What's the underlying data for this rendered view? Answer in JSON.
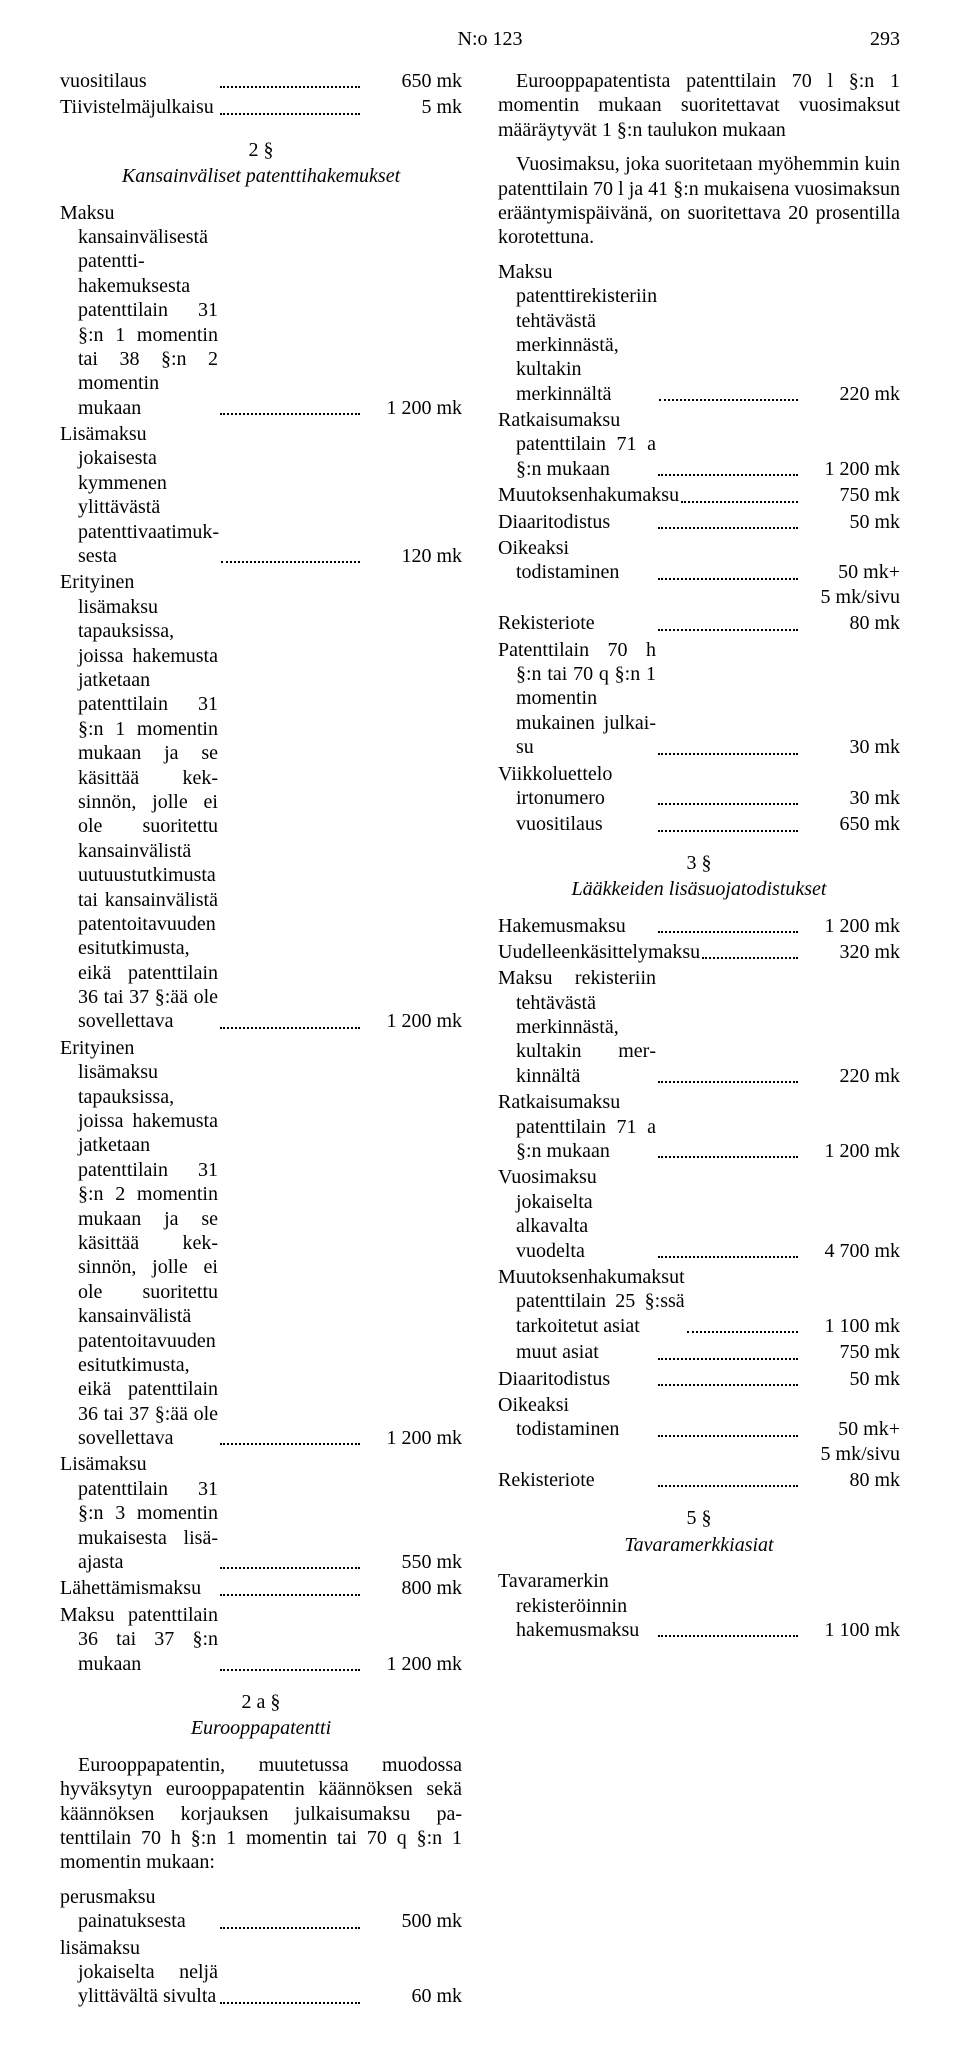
{
  "header": {
    "docref": "N:o 123",
    "pagenum": "293"
  },
  "left": {
    "topFees": [
      {
        "label": "vuositilaus",
        "value": "650 mk"
      },
      {
        "label": "Tiivistelmäjulkaisu",
        "value": "5 mk"
      }
    ],
    "sec2": {
      "num": "2 §",
      "title": "Kansainväliset patenttihakemukset"
    },
    "sec2Fees": [
      {
        "label": "Maksu kansainvälisestä patentti­hakemuksesta patenttilain 31 §:n 1 momentin tai 38 §:n 2 momentin mukaan",
        "value": "1 200 mk"
      },
      {
        "label": "Lisämaksu jokaisesta kymmenen ylittävästä patenttivaatimuk­sesta",
        "value": "120 mk"
      },
      {
        "label": "Erityinen lisämaksu tapauksissa, joissa hakemusta jatketaan patenttilain 31 §:n 1 momen­tin mukaan ja se käsittää kek­sinnön, jolle ei ole suoritettu kansainvälistä uutuustutki­musta tai kansainvälistä pa­tentoitavuuden esitutkimusta, eikä patenttilain 36 tai 37 §:ää ole sovellettava",
        "value": "1 200 mk"
      },
      {
        "label": "Erityinen lisämaksu tapauksissa, joissa hakemusta jatketaan patenttilain 31 §:n 2 momen­tin mukaan ja se käsittää kek­sinnön, jolle ei ole suoritettu kansainvälistä patentoitavuu­den esitutkimusta, eikä pa­tenttilain 36 tai 37 §:ää ole sovellettava",
        "value": "1 200 mk"
      },
      {
        "label": "Lisämaksu patenttilain 31 §:n 3 momentin mukaisesta lisä­ajasta",
        "value": "550 mk"
      },
      {
        "label": "Lähettämismaksu",
        "value": "800 mk"
      },
      {
        "label": "Maksu patenttilain 36 tai 37 §:n mukaan",
        "value": "1 200 mk"
      }
    ],
    "sec2a": {
      "num": "2 a §",
      "title": "Eurooppapatentti"
    },
    "sec2aPara": "Eurooppapatentin, muutetussa muodossa hyväksytyn eurooppapatentin käännöksen sekä käännöksen korjauksen julkaisumaksu pa­tenttilain 70 h §:n 1 momentin tai 70 q §:n 1 momentin mukaan:",
    "sec2aFees": [
      {
        "label": "perusmaksu painatuksesta",
        "value": "500 mk"
      },
      {
        "label": "lisämaksu jokaiselta neljä ylit­tävältä sivulta",
        "value": "60 mk"
      }
    ]
  },
  "right": {
    "para1": "Eurooppapatentista patenttilain 70 l §:n 1 momentin mukaan suoritettavat vuosimaksut määräytyvät 1 §:n taulukon mukaan",
    "para2": "Vuosimaksu, joka suoritetaan myöhemmin kuin patenttilain 70 l ja 41 §:n mukaisena vuosimaksun erääntymispäivänä, on suoritet­tava 20 prosentilla korotettuna.",
    "feesA": [
      {
        "label": "Maksu patenttirekisteriin tehtä­västä merkinnästä, kultakin merkinnältä",
        "value": "220 mk"
      },
      {
        "label": "Ratkaisumaksu patenttilain 71 a §:n mukaan",
        "value": "1 200 mk"
      },
      {
        "label": "Muutoksenhakumaksu",
        "value": "750 mk"
      },
      {
        "label": "Diaaritodistus",
        "value": "50 mk"
      },
      {
        "label": "Oikeaksi todistaminen",
        "value": "50 mk+",
        "note": "5 mk/sivu"
      },
      {
        "label": "Rekisteriote",
        "value": "80 mk"
      },
      {
        "label": "Patenttilain 70 h §:n tai 70 q §:n 1 momentin mukainen julkai­su",
        "value": "30 mk"
      }
    ],
    "viikkoHeader": "Viikkoluettelo",
    "viikko": [
      {
        "label": "irtonumero",
        "value": "30 mk"
      },
      {
        "label": "vuositilaus",
        "value": "650 mk"
      }
    ],
    "sec3": {
      "num": "3 §",
      "title": "Lääkkeiden lisäsuojatodistukset"
    },
    "sec3Fees": [
      {
        "label": "Hakemusmaksu",
        "value": "1 200 mk"
      },
      {
        "label": "Uudelleenkäsittelymaksu",
        "value": "320 mk"
      },
      {
        "label": "Maksu rekisteriin tehtävästä merkinnästä, kultakin mer­kinnältä",
        "value": "220 mk"
      },
      {
        "label": "Ratkaisumaksu patenttilain 71 a §:n mukaan",
        "value": "1 200 mk"
      },
      {
        "label": "Vuosimaksu jokaiselta alkavalta vuodelta",
        "value": "4 700 mk"
      },
      {
        "label": "Muutoksenhakumaksut patenttilain 25 §:ssä tarkoite­tut asiat",
        "value": "1 100 mk"
      },
      {
        "label": "muut asiat",
        "value": "750 mk",
        "indent": true
      },
      {
        "label": "Diaaritodistus",
        "value": "50 mk"
      },
      {
        "label": "Oikeaksi todistaminen",
        "value": "50 mk+",
        "note": "5 mk/sivu"
      },
      {
        "label": "Rekisteriote",
        "value": "80 mk"
      }
    ],
    "sec5": {
      "num": "5 §",
      "title": "Tavaramerkkiasiat"
    },
    "sec5Fees": [
      {
        "label": "Tavaramerkin rekisteröinnin ha­kemusmaksu",
        "value": "1 100 mk"
      }
    ]
  }
}
